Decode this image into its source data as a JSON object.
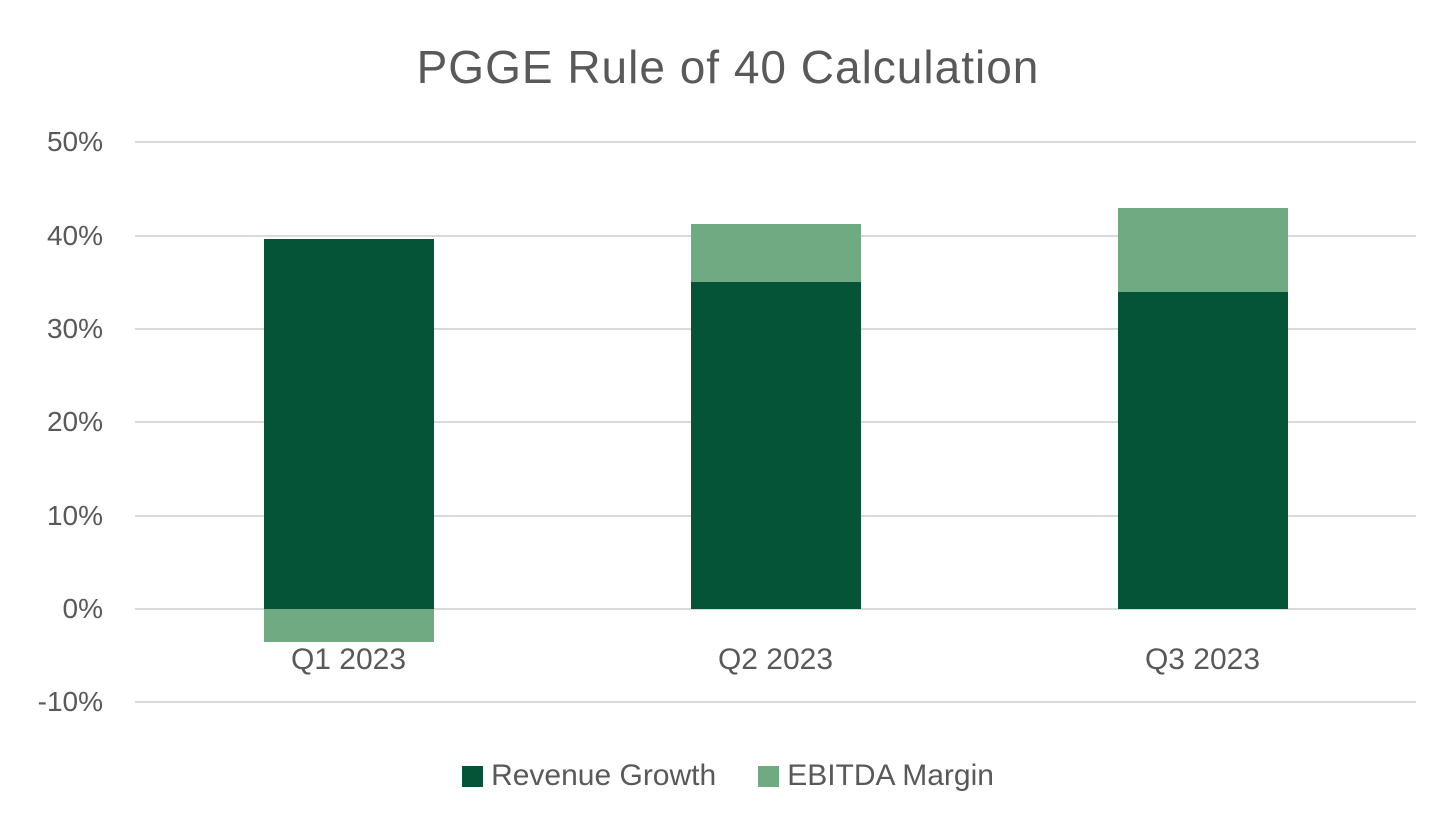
{
  "title": "PGGE Rule of 40 Calculation",
  "colors": {
    "background": "#FFFFFF",
    "gridline": "#D9D9D9",
    "text": "#595959",
    "revenue_growth": "#065438",
    "ebitda_margin": "#6FAA83"
  },
  "chart_data": {
    "type": "bar",
    "stacked": true,
    "title": "PGGE Rule of 40 Calculation",
    "categories": [
      "Q1 2023",
      "Q2 2023",
      "Q3 2023"
    ],
    "series": [
      {
        "name": "Revenue Growth",
        "color": "#065438",
        "values": [
          39.6,
          35.0,
          34.0
        ]
      },
      {
        "name": "EBITDA Margin",
        "color": "#6FAA83",
        "values": [
          -3.5,
          6.2,
          9.0
        ]
      }
    ],
    "totals_rule_of_40": [
      36.1,
      41.2,
      43.0
    ],
    "xlabel": "",
    "ylabel": "",
    "y_ticks": [
      "50%",
      "40%",
      "30%",
      "20%",
      "10%",
      "0%",
      "-10%"
    ],
    "y_tick_values": [
      50,
      40,
      30,
      20,
      10,
      0,
      -10
    ],
    "ylim": [
      -10,
      50
    ],
    "grid": true,
    "legend_position": "bottom",
    "legend": [
      "Revenue Growth",
      "EBITDA Margin"
    ]
  }
}
